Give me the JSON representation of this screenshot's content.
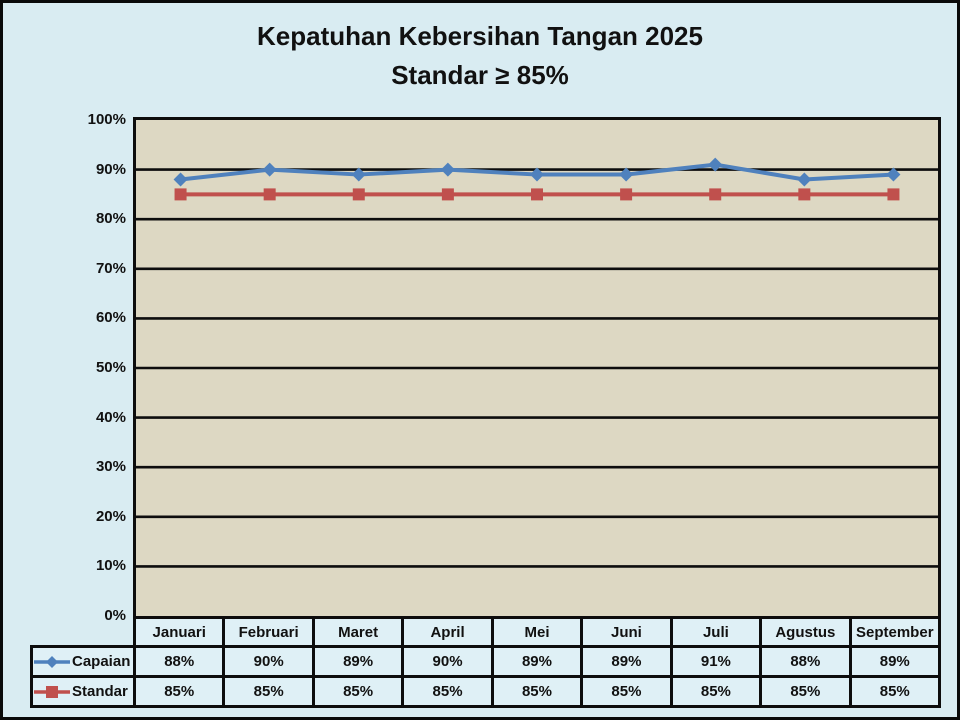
{
  "title": {
    "line1": "Kepatuhan Kebersihan Tangan 2025",
    "line2": "Standar ≥ 85%"
  },
  "chart_data": {
    "type": "line",
    "title": "Kepatuhan Kebersihan Tangan 2025 Standar ≥ 85%",
    "categories": [
      "Januari",
      "Februari",
      "Maret",
      "April",
      "Mei",
      "Juni",
      "Juli",
      "Agustus",
      "September"
    ],
    "series": [
      {
        "name": "Capaian",
        "marker": "diamond",
        "color": "#4f81bd",
        "values": [
          88,
          90,
          89,
          90,
          89,
          89,
          91,
          88,
          89
        ]
      },
      {
        "name": "Standar",
        "marker": "square",
        "color": "#c0504d",
        "values": [
          85,
          85,
          85,
          85,
          85,
          85,
          85,
          85,
          85
        ]
      }
    ],
    "xlabel": "",
    "ylabel": "",
    "ylim": [
      0,
      100
    ],
    "ytick_step": 10,
    "ytick_suffix": "%",
    "value_suffix": "%",
    "grid": true,
    "legend_position": "table-left",
    "data_table_shown": true
  },
  "colors": {
    "background": "#d9ecf2",
    "plot_background": "#ddd8c3",
    "gridline": "#0d0d0d",
    "table_border": "#0d0d0d",
    "cell_background": "#dff0f6",
    "capaian_series": "#4f81bd",
    "standar_series": "#c0504d",
    "text": "#111111"
  }
}
